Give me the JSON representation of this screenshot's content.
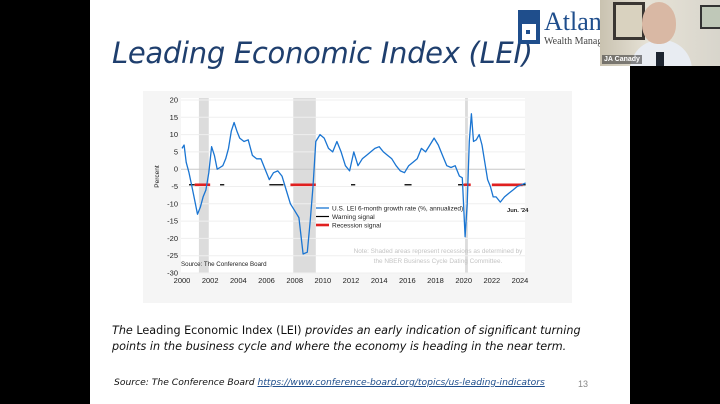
{
  "slide": {
    "title": "Leading Economic Index (LEI)",
    "page_number": "13",
    "description": {
      "lead_italic": "The",
      "normal": " Leading Economic Index (LEI) ",
      "rest_italic": "provides an early indication of significant turning points in the business cycle and where the economy is heading in the near term."
    },
    "source_label": "Source: The Conference Board",
    "source_link": "https://www.conference-board.org/topics/us-leading-indicators"
  },
  "logo": {
    "name": "Atlant",
    "subtitle": "Wealth Manage"
  },
  "video": {
    "participant_name": "JA Canady"
  },
  "colors": {
    "title": "#1f3f6e",
    "series": "#1a75d2",
    "warning": "#000000",
    "recession_signal": "#e02020",
    "recession_shade": "#dcdcdc",
    "link": "#1f4e8c"
  },
  "chart_data": {
    "type": "line",
    "title": "",
    "xlabel": "",
    "ylabel": "Percent",
    "xlim": [
      2000,
      2024.5
    ],
    "ylim": [
      -30,
      20
    ],
    "x_ticks": [
      "2000",
      "2002",
      "2004",
      "2006",
      "2008",
      "2010",
      "2012",
      "2014",
      "2016",
      "2018",
      "2020",
      "2022",
      "2024"
    ],
    "y_ticks": [
      "20",
      "15",
      "10",
      "5",
      "0",
      "-5",
      "-10",
      "-15",
      "-20",
      "-25",
      "-30"
    ],
    "grid": "horizontal",
    "legend": [
      {
        "label": "U.S. LEI 6-month growth rate (%, annualized)",
        "style": "blue-line"
      },
      {
        "label": "Warning signal",
        "style": "black-line"
      },
      {
        "label": "Recession signal",
        "style": "red-thick-line"
      }
    ],
    "annotations": {
      "source": "Source: The Conference Board",
      "note_line1": "Note: Shaded areas represent recessions as determined by",
      "note_line2": "the NBER Business Cycle Dating Committee.",
      "last_point_label": "Jun. '24"
    },
    "recession_shading": [
      {
        "start": 2001.2,
        "end": 2001.9
      },
      {
        "start": 2007.9,
        "end": 2009.5
      },
      {
        "start": 2020.1,
        "end": 2020.3
      }
    ],
    "warning_signals": [
      {
        "start": 2000.5,
        "end": 2000.9
      },
      {
        "start": 2002.7,
        "end": 2003.0
      },
      {
        "start": 2006.2,
        "end": 2007.2
      },
      {
        "start": 2012.0,
        "end": 2012.3
      },
      {
        "start": 2015.8,
        "end": 2016.3
      },
      {
        "start": 2019.6,
        "end": 2020.0
      },
      {
        "start": 2024.2,
        "end": 2024.4
      }
    ],
    "recession_signals": [
      {
        "start": 2000.9,
        "end": 2002.0
      },
      {
        "start": 2007.7,
        "end": 2009.5
      },
      {
        "start": 2020.0,
        "end": 2020.5
      },
      {
        "start": 2022.0,
        "end": 2024.2
      }
    ],
    "signal_level": -4.5,
    "series": [
      {
        "name": "U.S. LEI 6-month growth rate (%, annualized)",
        "x": [
          2000.0,
          2000.15,
          2000.3,
          2000.5,
          2000.7,
          2000.9,
          2001.1,
          2001.3,
          2001.5,
          2001.7,
          2001.9,
          2002.1,
          2002.3,
          2002.5,
          2002.7,
          2002.9,
          2003.1,
          2003.3,
          2003.5,
          2003.7,
          2003.9,
          2004.1,
          2004.4,
          2004.7,
          2005.0,
          2005.3,
          2005.6,
          2005.9,
          2006.2,
          2006.5,
          2006.8,
          2007.1,
          2007.4,
          2007.7,
          2008.0,
          2008.3,
          2008.6,
          2008.9,
          2009.1,
          2009.3,
          2009.5,
          2009.8,
          2010.1,
          2010.4,
          2010.7,
          2011.0,
          2011.3,
          2011.6,
          2011.9,
          2012.2,
          2012.5,
          2012.8,
          2013.1,
          2013.4,
          2013.7,
          2014.0,
          2014.3,
          2014.6,
          2014.9,
          2015.2,
          2015.5,
          2015.8,
          2016.1,
          2016.4,
          2016.7,
          2017.0,
          2017.3,
          2017.6,
          2017.9,
          2018.2,
          2018.5,
          2018.8,
          2019.1,
          2019.4,
          2019.7,
          2019.9,
          2020.1,
          2020.25,
          2020.4,
          2020.55,
          2020.7,
          2020.9,
          2021.1,
          2021.3,
          2021.5,
          2021.7,
          2021.9,
          2022.1,
          2022.3,
          2022.6,
          2022.9,
          2023.2,
          2023.5,
          2023.8,
          2024.1,
          2024.4
        ],
        "values": [
          6,
          7,
          2,
          -1,
          -5,
          -9,
          -13,
          -11,
          -8,
          -6,
          -1,
          6.5,
          4,
          0,
          0.5,
          1,
          3,
          6,
          11,
          13.5,
          11,
          9,
          8,
          8.5,
          4,
          3,
          3,
          0,
          -3,
          -1,
          -0.5,
          -2,
          -6,
          -10,
          -12,
          -14,
          -24.5,
          -24,
          -15,
          -5,
          8,
          10,
          9,
          6,
          5,
          8,
          5,
          1,
          -0.5,
          5,
          1,
          3,
          4,
          5,
          6,
          6.5,
          5,
          4,
          3,
          1,
          -0.5,
          -1,
          1,
          2,
          3,
          6,
          5,
          7,
          9,
          7,
          4,
          1,
          0.5,
          1,
          -2,
          -2.5,
          -19.5,
          -10,
          8,
          16,
          8,
          8.5,
          10,
          7,
          2,
          -3,
          -5,
          -8,
          -8,
          -9.5,
          -8,
          -7,
          -6,
          -5,
          -4.5,
          -4
        ]
      }
    ]
  }
}
